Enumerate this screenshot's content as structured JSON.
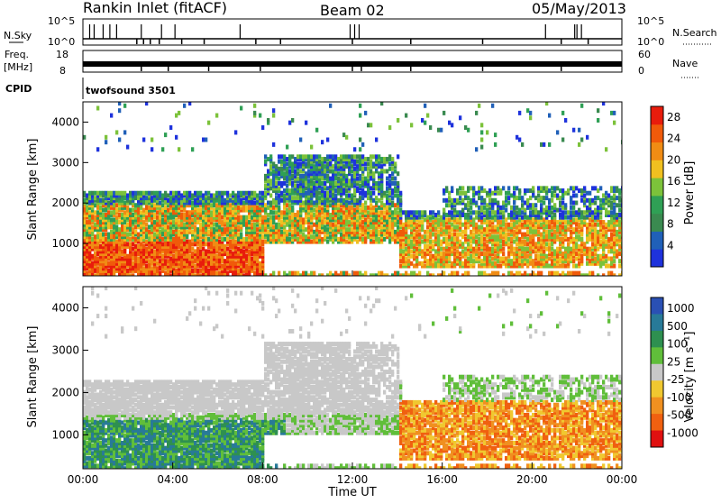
{
  "header": {
    "station": "Rankin Inlet (fitACF)",
    "beam": "Beam 02",
    "date": "05/May/2013"
  },
  "top_panels": {
    "nsky_label": "N.Sky",
    "nsky_ticks": [
      "10^5",
      "10^0"
    ],
    "nsearch_label": "N.Search",
    "nsearch_ticks": [
      "10^5",
      "10^0"
    ],
    "freq_label_1": "Freq.",
    "freq_label_2": "[MHz]",
    "freq_ticks": [
      "18",
      "8"
    ],
    "nave_label": "Nave",
    "nave_ticks": [
      "60",
      "0"
    ],
    "cpid_label": "CPID",
    "cpid_value": "twofsound 3501"
  },
  "colors": {
    "power_scale": [
      "#1e32dc",
      "#2060b8",
      "#3a8a50",
      "#2fa055",
      "#7cc23a",
      "#f0c020",
      "#f08c14",
      "#f05a0a",
      "#e81c0c"
    ],
    "velocity_scale": [
      "#2a50b4",
      "#287a98",
      "#2e9050",
      "#60be3a",
      "#c8c8c8",
      "#f0c830",
      "#f09020",
      "#f06010",
      "#e01010"
    ]
  },
  "chart_data": [
    {
      "type": "heatmap",
      "name": "power",
      "xlabel": "",
      "ylabel": "Slant Range [km]",
      "x_ticks": [
        "00:00",
        "04:00",
        "08:00",
        "12:00",
        "16:00",
        "20:00",
        "00:00"
      ],
      "y_ticks": [
        "1000",
        "2000",
        "3000",
        "4000"
      ],
      "ylim": [
        200,
        4500
      ],
      "colorbar_label": "Power [dB]",
      "colorbar_ticks": [
        "4",
        "8",
        "12",
        "16",
        "20",
        "24",
        "28"
      ],
      "colorbar_range": [
        0,
        30
      ]
    },
    {
      "type": "heatmap",
      "name": "velocity",
      "xlabel": "Time UT",
      "ylabel": "Slant Range [km]",
      "x_ticks": [
        "00:00",
        "04:00",
        "08:00",
        "12:00",
        "16:00",
        "20:00",
        "00:00"
      ],
      "y_ticks": [
        "1000",
        "2000",
        "3000",
        "4000"
      ],
      "ylim": [
        200,
        4500
      ],
      "colorbar_label": "Velocity [m s⁻¹]",
      "colorbar_ticks": [
        "1000",
        "500",
        "100",
        "25",
        "-25",
        "-100",
        "-500",
        "-1000"
      ]
    }
  ]
}
